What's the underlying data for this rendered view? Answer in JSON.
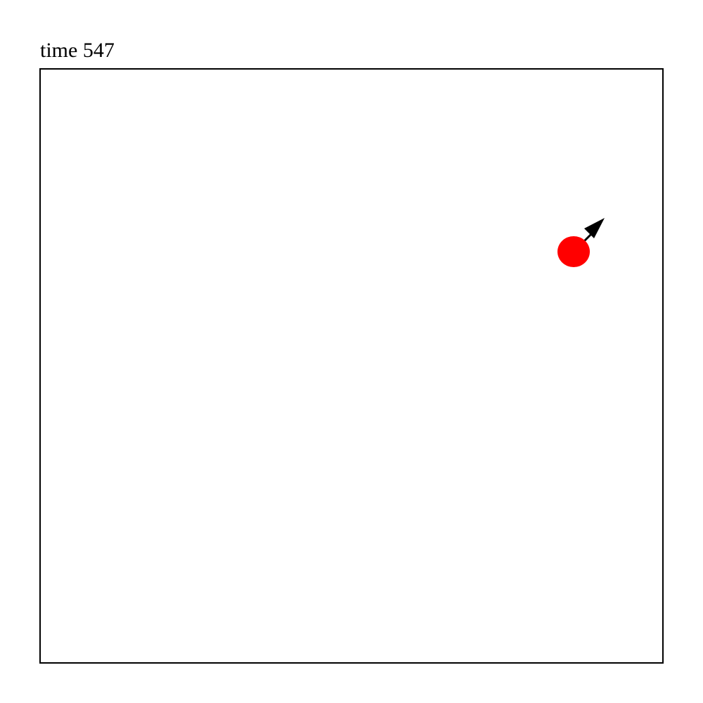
{
  "title": "time 547",
  "colors": {
    "agent": "#ff0000",
    "arrow": "#000000",
    "frame": "#000000",
    "background": "#ffffff"
  },
  "icons": {
    "agent": "red-circle",
    "heading": "black-arrow-northeast"
  }
}
